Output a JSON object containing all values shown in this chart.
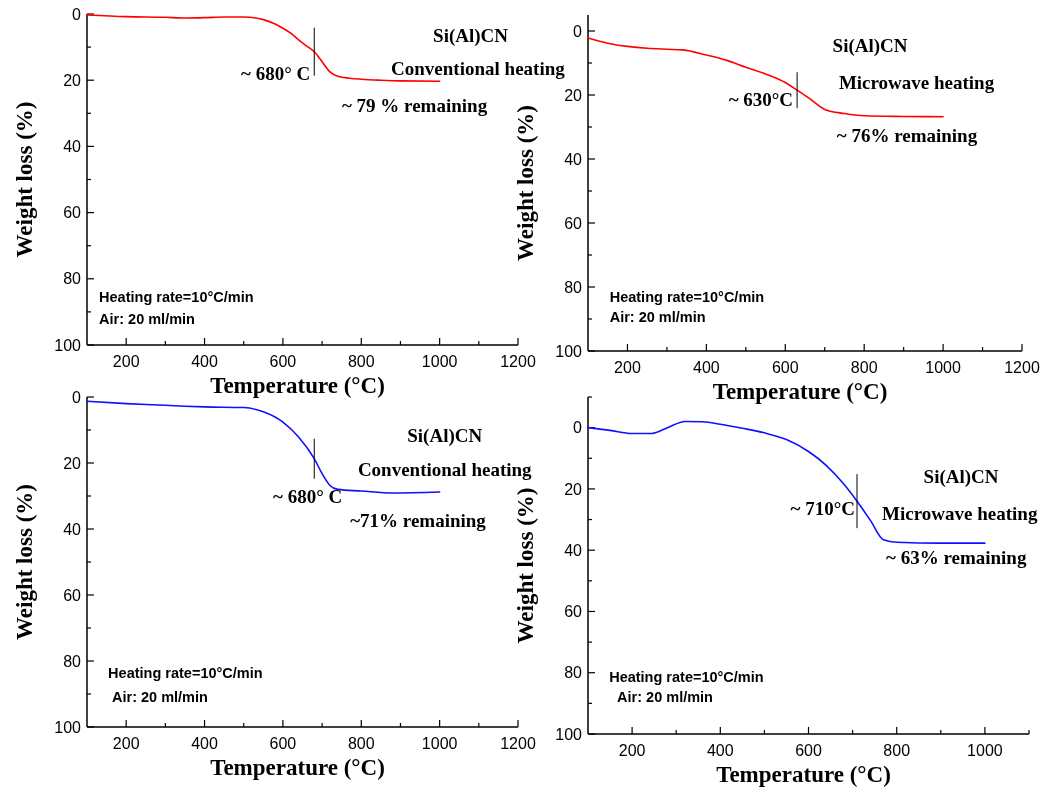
{
  "chart_data": [
    {
      "type": "line",
      "xlabel": "Temperature (°C)",
      "ylabel": "Weight loss (%)",
      "xlim": [
        100,
        1200
      ],
      "ylim": [
        100,
        0
      ],
      "xticks": [
        200,
        400,
        600,
        800,
        1000,
        1200,
        {
          "value": 300,
          "label": null
        },
        {
          "value": 500,
          "label": null
        },
        {
          "value": 700,
          "label": null
        },
        {
          "value": 900,
          "label": null
        },
        {
          "value": 1100,
          "label": null
        }
      ],
      "yticks": [
        0,
        20,
        40,
        60,
        80,
        100,
        {
          "value": 10,
          "label": null
        },
        {
          "value": 30,
          "label": null
        },
        {
          "value": 50,
          "label": null
        },
        {
          "value": 70,
          "label": null
        },
        {
          "value": 90,
          "label": null
        }
      ],
      "x": [
        100,
        200,
        300,
        350,
        400,
        450,
        500,
        550,
        580,
        600,
        620,
        640,
        660,
        680,
        700,
        720,
        740,
        770,
        800,
        850,
        900,
        1000
      ],
      "series": [
        {
          "color": "#ff0000",
          "values": [
            0.3,
            0.8,
            1.0,
            1.2,
            1.1,
            0.9,
            0.9,
            1.7,
            3.0,
            4.3,
            5.8,
            7.8,
            9.6,
            11.4,
            14.4,
            17.5,
            18.8,
            19.4,
            19.7,
            20.0,
            20.2,
            20.3
          ]
        }
      ],
      "annotations": [
        {
          "text": "~ 680° C",
          "x": 680,
          "y": 11.4
        },
        "Si(Al)CN",
        "Conventional heating",
        "~ 79 % remaining",
        "Heating rate=10°C/min",
        "Air: 20 ml/min"
      ]
    },
    {
      "type": "line",
      "xlabel": "Temperature (°C)",
      "ylabel": "Weight loss (%)",
      "xlim": [
        100,
        1200
      ],
      "ylim": [
        100,
        -5
      ],
      "xticks": [
        200,
        400,
        600,
        800,
        1000,
        1200,
        {
          "value": 300,
          "label": null
        },
        {
          "value": 500,
          "label": null
        },
        {
          "value": 700,
          "label": null
        },
        {
          "value": 900,
          "label": null
        },
        {
          "value": 1100,
          "label": null
        }
      ],
      "yticks": [
        0,
        20,
        40,
        60,
        80,
        100,
        {
          "value": 10,
          "label": null
        },
        {
          "value": 30,
          "label": null
        },
        {
          "value": 50,
          "label": null
        },
        {
          "value": 70,
          "label": null
        },
        {
          "value": 90,
          "label": null
        }
      ],
      "x": [
        100,
        150,
        200,
        250,
        300,
        340,
        400,
        450,
        500,
        550,
        600,
        630,
        660,
        700,
        750,
        800,
        900,
        1000
      ],
      "series": [
        {
          "color": "#ff0000",
          "values": [
            2.2,
            3.8,
            4.8,
            5.4,
            5.7,
            5.9,
            7.5,
            9.1,
            11.3,
            13.4,
            16.1,
            18.5,
            21.0,
            24.5,
            25.8,
            26.5,
            26.7,
            26.8
          ]
        }
      ],
      "annotations": [
        {
          "text": "~ 630°C",
          "x": 630,
          "y": 18.5
        },
        "Si(Al)CN",
        "Microwave heating",
        "~ 76% remaining",
        "Heating rate=10°C/min",
        "Air: 20 ml/min"
      ]
    },
    {
      "type": "line",
      "xlabel": "Temperature (°C)",
      "ylabel": "Weight loss (%)",
      "xlim": [
        100,
        1200
      ],
      "ylim": [
        100,
        0
      ],
      "xticks": [
        200,
        400,
        600,
        800,
        1000,
        1200,
        {
          "value": 300,
          "label": null
        },
        {
          "value": 500,
          "label": null
        },
        {
          "value": 700,
          "label": null
        },
        {
          "value": 900,
          "label": null
        },
        {
          "value": 1100,
          "label": null
        }
      ],
      "yticks": [
        0,
        20,
        40,
        60,
        80,
        100,
        {
          "value": 10,
          "label": null
        },
        {
          "value": 30,
          "label": null
        },
        {
          "value": 50,
          "label": null
        },
        {
          "value": 70,
          "label": null
        },
        {
          "value": 90,
          "label": null
        }
      ],
      "x": [
        100,
        200,
        300,
        350,
        400,
        500,
        550,
        600,
        640,
        680,
        700,
        720,
        740,
        800,
        880,
        1000
      ],
      "series": [
        {
          "color": "#1010ff",
          "values": [
            1.3,
            2.0,
            2.5,
            2.8,
            3.0,
            3.2,
            4.5,
            7.6,
            12.1,
            18.7,
            23.2,
            26.8,
            28.0,
            28.5,
            29.1,
            28.8
          ]
        }
      ],
      "annotations": [
        {
          "text": "~ 680° C",
          "x": 680,
          "y": 18.7
        },
        "Si(Al)CN",
        "Conventional heating",
        "~71% remaining",
        "Heating rate=10°C/min",
        "Air: 20 ml/min"
      ]
    },
    {
      "type": "line",
      "xlabel": "Temperature (°C)",
      "ylabel": "Weight loss (%)",
      "xlim": [
        100,
        1100
      ],
      "ylim": [
        100,
        -10
      ],
      "xticks": [
        200,
        400,
        600,
        800,
        1000,
        {
          "value": 300,
          "label": null
        },
        {
          "value": 500,
          "label": null
        },
        {
          "value": 700,
          "label": null
        },
        {
          "value": 900,
          "label": null
        },
        {
          "value": 1100,
          "label": null
        }
      ],
      "yticks": [
        0,
        20,
        40,
        60,
        80,
        100,
        {
          "value": -10,
          "label": null
        },
        {
          "value": 10,
          "label": null
        },
        {
          "value": 30,
          "label": null
        },
        {
          "value": 50,
          "label": null
        },
        {
          "value": 70,
          "label": null
        },
        {
          "value": 90,
          "label": null
        }
      ],
      "x": [
        100,
        150,
        200,
        245,
        280,
        320,
        360,
        400,
        450,
        500,
        550,
        600,
        640,
        680,
        710,
        740,
        770,
        800,
        900,
        1000
      ],
      "series": [
        {
          "color": "#1010ff",
          "values": [
            0,
            0.9,
            1.9,
            1.9,
            0,
            -2.0,
            -1.9,
            -1.1,
            0.2,
            1.7,
            3.9,
            7.8,
            12.3,
            18.4,
            24.0,
            30.2,
            36.6,
            37.4,
            37.7,
            37.7
          ]
        }
      ],
      "annotations": [
        {
          "text": "~ 710°C",
          "x": 710,
          "y": 24.0
        },
        "Si(Al)CN",
        "Microwave heating",
        "~ 63% remaining",
        "Heating rate=10°C/min",
        "Air: 20 ml/min"
      ]
    }
  ]
}
